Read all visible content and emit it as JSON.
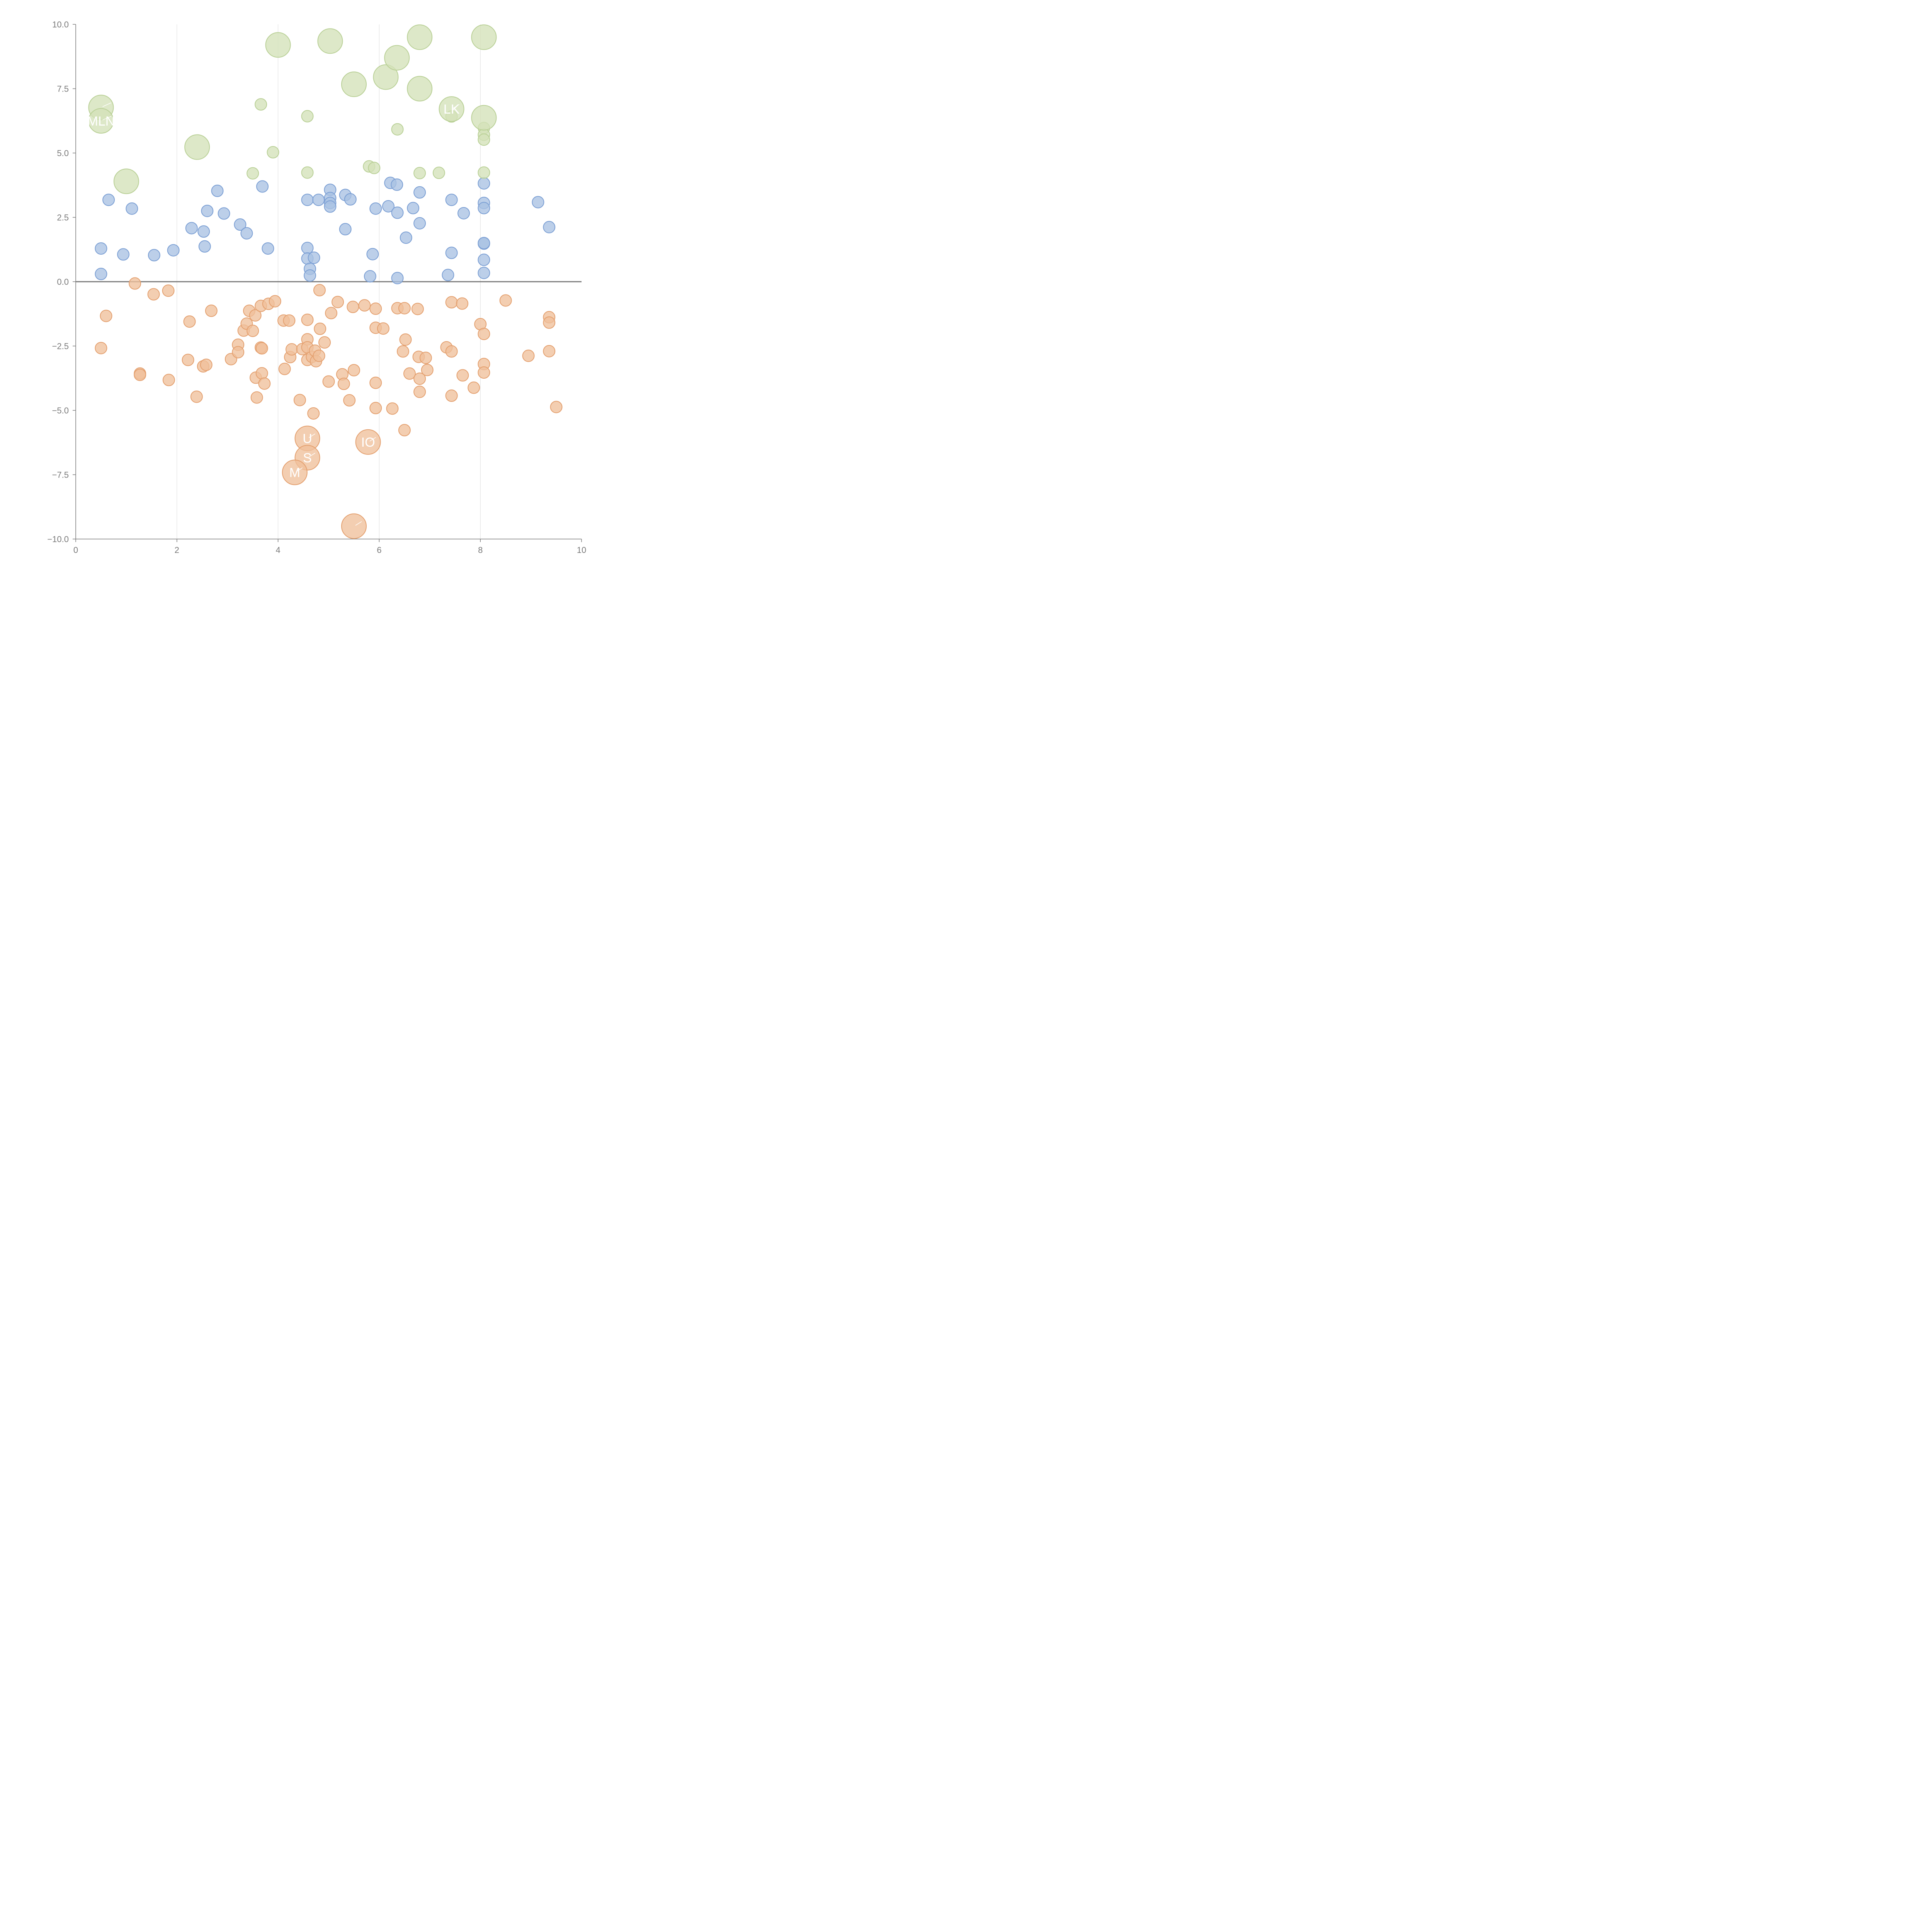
{
  "chart_data": {
    "type": "scatter",
    "subtype": "bubble",
    "title": "",
    "xlabel": "",
    "ylabel": "",
    "xlim": [
      0,
      10
    ],
    "ylim": [
      -10,
      10
    ],
    "x_ticks": [
      0,
      2,
      4,
      6,
      8,
      10
    ],
    "x_tick_labels": [
      "0",
      "2",
      "4",
      "6",
      "8",
      "10"
    ],
    "y_ticks": [
      -10,
      -7.5,
      -5,
      -2.5,
      0,
      2.5,
      5,
      7.5,
      10
    ],
    "y_tick_labels": [
      "−10.0",
      "−7.5",
      "−5.0",
      "−2.5",
      "0.0",
      "2.5",
      "5.0",
      "7.5",
      "10.0"
    ],
    "vertical_grid": true,
    "horizontal_grid": false,
    "reference_line_y": 0,
    "legend": "none",
    "series": [
      {
        "color": "#a9c1e3",
        "stroke": "#7b9fd4",
        "size": "small",
        "points": [
          [
            0.65,
            3.18
          ],
          [
            1.11,
            2.84
          ],
          [
            0.5,
            1.29
          ],
          [
            0.94,
            1.06
          ],
          [
            0.5,
            0.3
          ],
          [
            1.55,
            1.03
          ],
          [
            1.93,
            1.22
          ],
          [
            2.29,
            2.08
          ],
          [
            2.53,
            1.95
          ],
          [
            2.55,
            1.37
          ],
          [
            2.6,
            2.75
          ],
          [
            2.8,
            3.53
          ],
          [
            2.93,
            2.65
          ],
          [
            3.25,
            2.22
          ],
          [
            3.38,
            1.88
          ],
          [
            3.69,
            3.7
          ],
          [
            3.8,
            1.29
          ],
          [
            4.58,
            3.18
          ],
          [
            4.8,
            3.18
          ],
          [
            4.58,
            1.31
          ],
          [
            4.58,
            0.9
          ],
          [
            4.71,
            0.93
          ],
          [
            4.63,
            0.5
          ],
          [
            4.63,
            0.24
          ],
          [
            5.03,
            3.57
          ],
          [
            5.03,
            3.25
          ],
          [
            5.03,
            3.06
          ],
          [
            5.03,
            2.92
          ],
          [
            5.33,
            3.37
          ],
          [
            5.43,
            3.2
          ],
          [
            5.33,
            2.04
          ],
          [
            5.93,
            2.84
          ],
          [
            5.87,
            1.07
          ],
          [
            5.82,
            0.21
          ],
          [
            6.22,
            3.84
          ],
          [
            6.35,
            3.77
          ],
          [
            6.18,
            2.93
          ],
          [
            6.36,
            2.68
          ],
          [
            6.53,
            1.71
          ],
          [
            6.36,
            0.14
          ],
          [
            6.8,
            3.47
          ],
          [
            6.67,
            2.86
          ],
          [
            6.8,
            2.27
          ],
          [
            7.43,
            3.18
          ],
          [
            7.67,
            2.66
          ],
          [
            7.43,
            1.12
          ],
          [
            7.36,
            0.26
          ],
          [
            8.07,
            3.82
          ],
          [
            8.07,
            3.06
          ],
          [
            8.07,
            2.86
          ],
          [
            8.07,
            1.48
          ],
          [
            8.07,
            1.5
          ],
          [
            8.07,
            0.85
          ],
          [
            8.07,
            0.34
          ],
          [
            9.14,
            3.09
          ],
          [
            9.36,
            2.12
          ]
        ]
      },
      {
        "color": "#f0c09b",
        "stroke": "#e4a06f",
        "size": "small",
        "points": [
          [
            0.6,
            -1.33
          ],
          [
            0.5,
            -2.58
          ],
          [
            1.17,
            -0.07
          ],
          [
            1.54,
            -0.49
          ],
          [
            1.83,
            -0.35
          ],
          [
            1.27,
            -3.57
          ],
          [
            1.27,
            -3.62
          ],
          [
            1.84,
            -3.82
          ],
          [
            2.25,
            -1.55
          ],
          [
            2.22,
            -3.04
          ],
          [
            2.52,
            -3.29
          ],
          [
            2.58,
            -3.23
          ],
          [
            2.68,
            -1.13
          ],
          [
            2.39,
            -4.47
          ],
          [
            3.07,
            -3.01
          ],
          [
            3.21,
            -2.45
          ],
          [
            3.21,
            -2.74
          ],
          [
            3.32,
            -1.9
          ],
          [
            3.38,
            -1.63
          ],
          [
            3.43,
            -1.13
          ],
          [
            3.5,
            -1.91
          ],
          [
            3.55,
            -1.31
          ],
          [
            3.56,
            -3.73
          ],
          [
            3.58,
            -4.5
          ],
          [
            3.66,
            -2.56
          ],
          [
            3.68,
            -2.59
          ],
          [
            3.68,
            -3.56
          ],
          [
            3.73,
            -3.96
          ],
          [
            3.66,
            -0.94
          ],
          [
            3.81,
            -0.86
          ],
          [
            3.94,
            -0.76
          ],
          [
            4.11,
            -1.51
          ],
          [
            4.22,
            -1.51
          ],
          [
            4.13,
            -3.39
          ],
          [
            4.24,
            -2.93
          ],
          [
            4.27,
            -2.63
          ],
          [
            4.43,
            -4.6
          ],
          [
            4.48,
            -2.62
          ],
          [
            4.58,
            -1.48
          ],
          [
            4.58,
            -2.24
          ],
          [
            4.58,
            -2.55
          ],
          [
            4.58,
            -3.04
          ],
          [
            4.67,
            -2.92
          ],
          [
            4.73,
            -2.68
          ],
          [
            4.75,
            -3.09
          ],
          [
            4.81,
            -2.88
          ],
          [
            4.83,
            -1.83
          ],
          [
            4.82,
            -0.33
          ],
          [
            4.92,
            -2.36
          ],
          [
            4.7,
            -5.12
          ],
          [
            5.0,
            -3.88
          ],
          [
            5.05,
            -1.22
          ],
          [
            5.18,
            -0.79
          ],
          [
            5.27,
            -3.6
          ],
          [
            5.3,
            -3.97
          ],
          [
            5.41,
            -4.61
          ],
          [
            5.48,
            -0.98
          ],
          [
            5.5,
            -3.44
          ],
          [
            5.71,
            -0.92
          ],
          [
            5.93,
            -1.05
          ],
          [
            5.93,
            -1.79
          ],
          [
            6.08,
            -1.82
          ],
          [
            5.93,
            -3.93
          ],
          [
            5.93,
            -4.91
          ],
          [
            6.26,
            -4.93
          ],
          [
            6.36,
            -1.03
          ],
          [
            6.5,
            -1.03
          ],
          [
            6.52,
            -2.25
          ],
          [
            6.47,
            -2.71
          ],
          [
            6.6,
            -3.57
          ],
          [
            6.76,
            -1.06
          ],
          [
            6.78,
            -2.92
          ],
          [
            6.8,
            -3.77
          ],
          [
            6.8,
            -4.28
          ],
          [
            6.92,
            -2.96
          ],
          [
            6.95,
            -3.43
          ],
          [
            6.5,
            -5.77
          ],
          [
            7.43,
            -0.8
          ],
          [
            7.64,
            -0.85
          ],
          [
            7.33,
            -2.55
          ],
          [
            7.43,
            -2.71
          ],
          [
            7.43,
            -4.43
          ],
          [
            7.65,
            -3.64
          ],
          [
            7.87,
            -4.12
          ],
          [
            8.0,
            -1.65
          ],
          [
            8.07,
            -2.03
          ],
          [
            8.07,
            -3.2
          ],
          [
            8.07,
            -3.53
          ],
          [
            8.5,
            -0.73
          ],
          [
            8.95,
            -2.88
          ],
          [
            9.36,
            -1.38
          ],
          [
            9.36,
            -1.59
          ],
          [
            9.36,
            -2.7
          ],
          [
            9.5,
            -4.87
          ]
        ]
      },
      {
        "color": "#d3e2b8",
        "stroke": "#b9d096",
        "size": "small",
        "points": [
          [
            3.66,
            6.89
          ],
          [
            4.58,
            6.43
          ],
          [
            3.9,
            5.03
          ],
          [
            3.5,
            4.21
          ],
          [
            4.58,
            4.24
          ],
          [
            5.8,
            4.48
          ],
          [
            5.9,
            4.42
          ],
          [
            6.36,
            5.92
          ],
          [
            6.8,
            4.22
          ],
          [
            7.18,
            4.23
          ],
          [
            7.43,
            6.42
          ],
          [
            8.07,
            5.97
          ],
          [
            8.07,
            5.71
          ],
          [
            8.07,
            5.52
          ],
          [
            8.07,
            4.24
          ]
        ]
      },
      {
        "color": "#d3e2b8",
        "stroke": "#b9d096",
        "size": "large",
        "points": [
          [
            0.5,
            6.77
          ],
          [
            0.5,
            6.25
          ],
          [
            1.0,
            3.9
          ],
          [
            2.4,
            5.23
          ],
          [
            4.0,
            9.2
          ],
          [
            5.03,
            9.35
          ],
          [
            5.5,
            7.67
          ],
          [
            6.13,
            7.95
          ],
          [
            6.35,
            8.7
          ],
          [
            6.8,
            9.5
          ],
          [
            6.8,
            7.5
          ],
          [
            7.43,
            6.71
          ],
          [
            8.07,
            9.5
          ],
          [
            8.07,
            6.37
          ]
        ]
      },
      {
        "color": "#f0c09b",
        "stroke": "#e4a06f",
        "size": "large",
        "points": [
          [
            4.58,
            -6.09
          ],
          [
            4.58,
            -6.84
          ],
          [
            4.33,
            -7.41
          ],
          [
            5.78,
            -6.23
          ],
          [
            5.5,
            -9.5
          ]
        ]
      }
    ],
    "annotations": [
      {
        "text": "MLN",
        "x": 0.5,
        "y": 6.25
      },
      {
        "text": " ",
        "x": 0.5,
        "y": 6.77
      },
      {
        "text": "LK",
        "x": 7.43,
        "y": 6.71
      },
      {
        "text": "U",
        "x": 4.58,
        "y": -6.09
      },
      {
        "text": "M",
        "x": 4.33,
        "y": -7.41
      },
      {
        "text": "IO",
        "x": 5.78,
        "y": -6.23
      },
      {
        "text": "S",
        "x": 4.58,
        "y": -6.84
      },
      {
        "text": " ",
        "x": 5.5,
        "y": -9.5
      }
    ]
  }
}
